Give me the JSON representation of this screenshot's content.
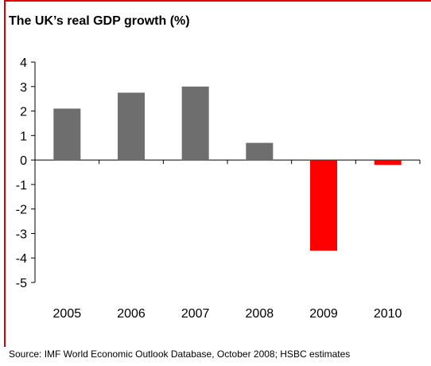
{
  "title": "The UK’s real GDP growth (%)",
  "source": "Source: IMF World Economic Outlook Database, October 2008; HSBC estimates",
  "colors": {
    "positive": "#6e6e6e",
    "negative": "#ff0000",
    "frame": "#e00000"
  },
  "chart_data": {
    "type": "bar",
    "title": "The UK’s real GDP growth (%)",
    "xlabel": "",
    "ylabel": "",
    "categories": [
      "2005",
      "2006",
      "2007",
      "2008",
      "2009",
      "2010"
    ],
    "values": [
      2.1,
      2.75,
      3.0,
      0.7,
      -3.7,
      -0.2
    ],
    "ylim": [
      -5,
      4
    ],
    "yticks": [
      4,
      3,
      2,
      1,
      0,
      -1,
      -2,
      -3,
      -4,
      -5
    ],
    "grid": false,
    "legend": "none"
  }
}
